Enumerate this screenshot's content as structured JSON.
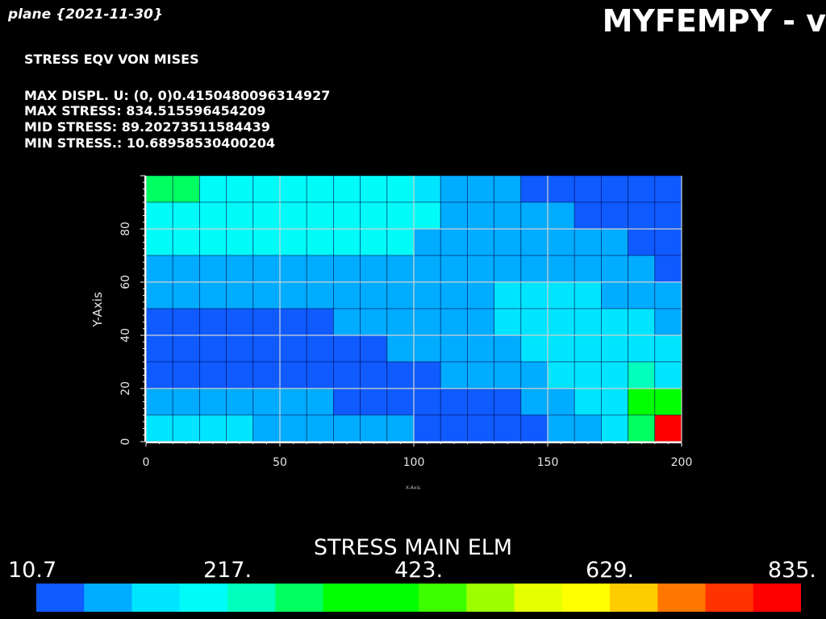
{
  "header": {
    "plane_label": "plane {2021-11-30}",
    "app_title": "MYFEMPY - v"
  },
  "info": {
    "title": "STRESS EQV VON MISES",
    "max_displ": "MAX DISPL. U:   (0, 0)0.4150480096314927",
    "max_stress": "MAX STRESS: 834.515596454209",
    "mid_stress": "MID STRESS: 89.20273511584439",
    "min_stress": "MIN STRESS.: 10.68958530400204"
  },
  "chart_data": {
    "type": "heatmap",
    "xlabel": "X-Axis",
    "ylabel": "Y-Axis",
    "xlim": [
      0,
      200
    ],
    "ylim": [
      0,
      100
    ],
    "x_ticks": [
      "0",
      "50",
      "100",
      "150",
      "200"
    ],
    "y_ticks": [
      "0",
      "20",
      "40",
      "60",
      "80"
    ],
    "grid": true,
    "cell_size": 10,
    "rows_top_to_bottom": [
      [
        5,
        5,
        3,
        3,
        3,
        3,
        3,
        3,
        3,
        3,
        2,
        1,
        1,
        1,
        0,
        0,
        0,
        0,
        0,
        0
      ],
      [
        3,
        3,
        3,
        3,
        3,
        3,
        3,
        3,
        3,
        3,
        3,
        1,
        1,
        1,
        1,
        1,
        0,
        0,
        0,
        0
      ],
      [
        3,
        3,
        3,
        3,
        3,
        3,
        3,
        3,
        3,
        3,
        1,
        1,
        1,
        1,
        1,
        1,
        1,
        1,
        0,
        0
      ],
      [
        1,
        1,
        1,
        1,
        1,
        1,
        1,
        1,
        1,
        1,
        1,
        1,
        1,
        1,
        1,
        1,
        1,
        1,
        1,
        0
      ],
      [
        1,
        1,
        1,
        1,
        1,
        1,
        1,
        1,
        1,
        1,
        1,
        1,
        1,
        2,
        2,
        2,
        2,
        1,
        1,
        1
      ],
      [
        0,
        0,
        0,
        0,
        0,
        0,
        0,
        1,
        1,
        1,
        1,
        1,
        1,
        2,
        2,
        2,
        2,
        2,
        2,
        1
      ],
      [
        0,
        0,
        0,
        0,
        0,
        0,
        0,
        0,
        0,
        1,
        1,
        1,
        1,
        1,
        2,
        2,
        2,
        2,
        2,
        2
      ],
      [
        0,
        0,
        0,
        0,
        0,
        0,
        0,
        0,
        0,
        0,
        0,
        1,
        1,
        1,
        1,
        2,
        2,
        2,
        4,
        2
      ],
      [
        1,
        1,
        1,
        1,
        1,
        1,
        1,
        0,
        0,
        0,
        0,
        0,
        0,
        0,
        1,
        1,
        2,
        2,
        6,
        6
      ],
      [
        2,
        2,
        2,
        2,
        1,
        1,
        1,
        1,
        1,
        1,
        0,
        0,
        0,
        0,
        0,
        1,
        1,
        2,
        5,
        15
      ]
    ],
    "colorbar": {
      "title": "STRESS MAIN ELM",
      "range": [
        10.7,
        835
      ],
      "tick_labels": [
        "10.7",
        "217.",
        "423.",
        "629.",
        "835."
      ],
      "colors": [
        "#0f5bff",
        "#00acff",
        "#00e5ff",
        "#00fcf8",
        "#00ffbc",
        "#00ff60",
        "#00ff00",
        "#00ff00",
        "#3cff00",
        "#9dff00",
        "#e5ff00",
        "#ffff00",
        "#ffcc00",
        "#ff7700",
        "#ff3300",
        "#ff0000"
      ]
    }
  }
}
